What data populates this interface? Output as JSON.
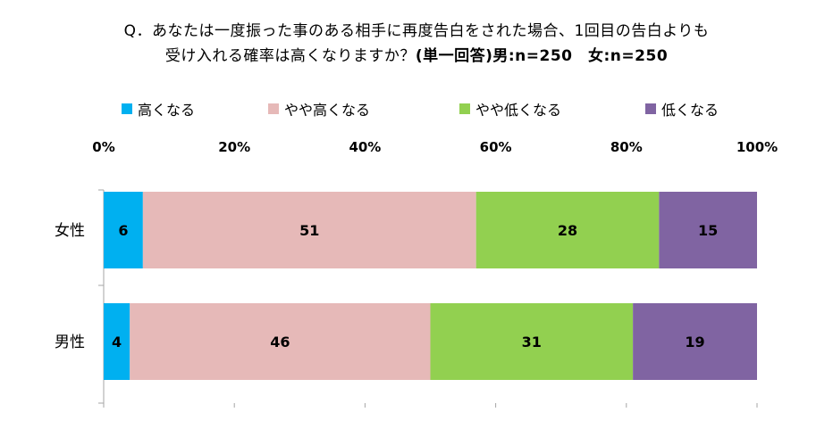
{
  "title": {
    "line1": "Q．あなたは一度振った事のある相手に再度告白をされた場合、1回目の告白よりも",
    "line2_prefix": "受け入れる確率は高くなりますか？",
    "line2_suffix": "(単一回答)男:n=250　女:n=250"
  },
  "colors": {
    "high": "#00b0f0",
    "slightly_high": "#e6b9b8",
    "slightly_low": "#92d050",
    "low": "#8064a2",
    "axis": "#a6a6a6"
  },
  "chart_data": {
    "type": "bar",
    "orientation": "horizontal-stacked-percent",
    "categories": [
      "女性",
      "男性"
    ],
    "series": [
      {
        "name": "高くなる",
        "values": [
          6,
          4
        ]
      },
      {
        "name": "やや高くなる",
        "values": [
          51,
          46
        ]
      },
      {
        "name": "やや低くなる",
        "values": [
          28,
          31
        ]
      },
      {
        "name": "低くなる",
        "values": [
          15,
          19
        ]
      }
    ],
    "xlim": [
      0,
      100
    ],
    "xticks": [
      "0%",
      "20%",
      "40%",
      "60%",
      "80%",
      "100%"
    ],
    "legend_position": "top",
    "axis_position": "top",
    "grid": false
  }
}
